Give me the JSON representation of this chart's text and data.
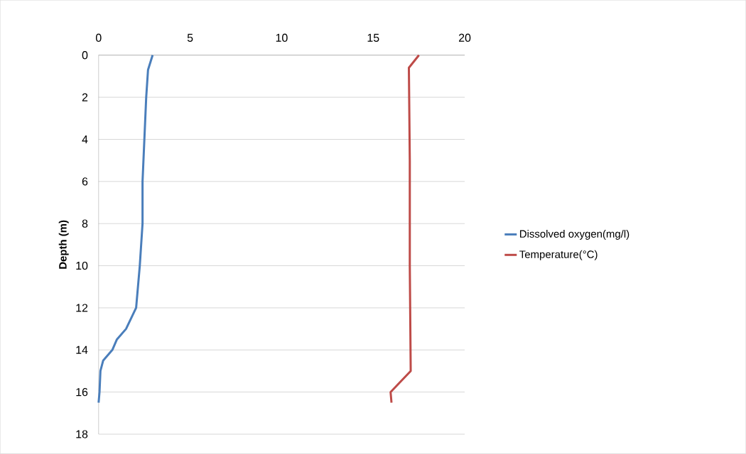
{
  "chart_data": {
    "type": "line",
    "ylabel": "Depth (m)",
    "xlim": [
      0,
      20
    ],
    "xticks": [
      0,
      5,
      10,
      15,
      20
    ],
    "ylim": [
      18,
      0
    ],
    "yticks": [
      0,
      2,
      4,
      6,
      8,
      10,
      12,
      14,
      16,
      18
    ],
    "grid": "y",
    "legend": "right",
    "marker": "none",
    "line_style": "solid",
    "series": [
      {
        "name": "Dissolved oxygen(mg/l)",
        "color": "#4a7ebb",
        "x": [
          2.95,
          2.7,
          2.6,
          2.5,
          2.4,
          2.4,
          2.25,
          2.05,
          1.5,
          1.0,
          0.75,
          0.25,
          0.1,
          0.05,
          0.0
        ],
        "values": [
          0,
          0.7,
          2,
          4,
          6,
          8,
          10,
          12,
          13,
          13.5,
          14,
          14.5,
          15,
          16,
          16.5
        ]
      },
      {
        "name": "Temperature(°C)",
        "color": "#be4b48",
        "x": [
          17.5,
          16.95,
          17.0,
          17.0,
          17.05,
          15.95,
          16.0
        ],
        "values": [
          0,
          0.6,
          5,
          10,
          15,
          16,
          16.5
        ]
      }
    ]
  }
}
